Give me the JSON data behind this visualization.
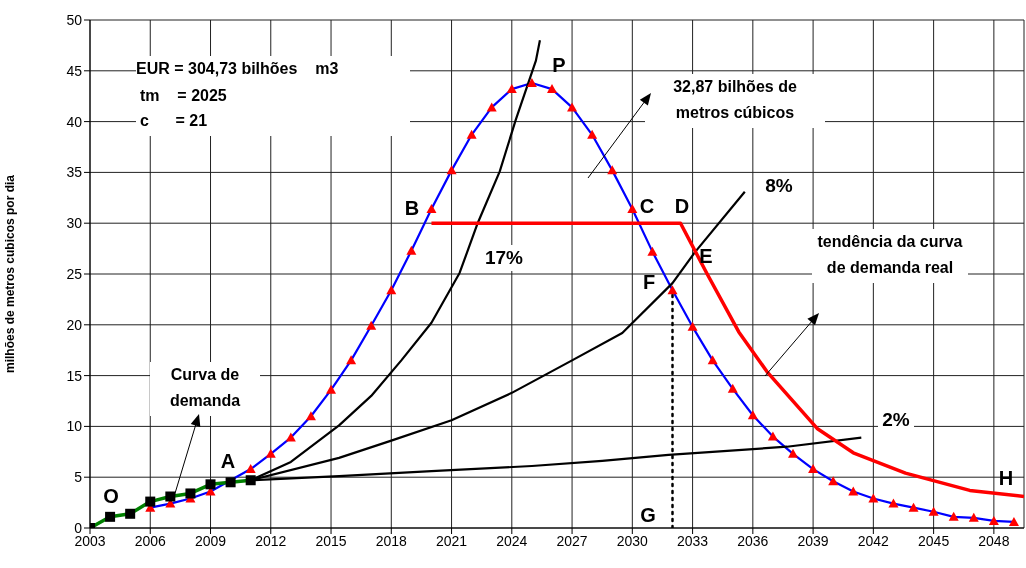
{
  "chart_data": {
    "type": "line",
    "ylabel": "milhões de metros cubicos por dia",
    "xlim": [
      2003,
      2049.5
    ],
    "xticks": [
      2003,
      2006,
      2009,
      2012,
      2015,
      2018,
      2021,
      2024,
      2027,
      2030,
      2033,
      2036,
      2039,
      2042,
      2045,
      2048
    ],
    "ylim": [
      0,
      50
    ],
    "yticks": [
      0,
      5,
      10,
      15,
      20,
      25,
      30,
      35,
      40,
      45,
      50
    ],
    "grid": true,
    "series": [
      {
        "type": "line",
        "color": "#0000ff",
        "marker": "none",
        "x": [
          2006,
          2007,
          2008,
          2009,
          2010,
          2011,
          2012,
          2013,
          2014,
          2015,
          2016,
          2017,
          2018,
          2019,
          2020,
          2021,
          2022,
          2023,
          2024,
          2025,
          2026,
          2027,
          2028,
          2029,
          2030,
          2031,
          2032,
          2033,
          2034,
          2035,
          2036,
          2037,
          2038,
          2039,
          2040,
          2041,
          2042,
          2043,
          2044,
          2045,
          2046,
          2047,
          2048,
          2049
        ],
        "values": [
          2.0,
          2.4,
          2.9,
          3.6,
          null,
          5.8,
          7.3,
          8.9,
          11.0,
          13.6,
          16.5,
          19.9,
          23.4,
          27.3,
          31.4,
          35.2,
          38.7,
          41.4,
          43.2,
          43.8,
          43.2,
          41.4,
          38.7,
          35.2,
          31.4,
          27.2,
          23.4,
          19.8,
          16.5,
          13.7,
          11.1,
          9.0,
          7.3,
          5.8,
          4.6,
          3.6,
          2.9,
          2.4,
          2.0,
          1.6,
          1.1,
          1.0,
          0.7,
          0.6
        ]
      },
      {
        "type": "scatter",
        "color": "#ff0000",
        "marker": "triangle",
        "x": [
          2006,
          2007,
          2008,
          2009,
          2010,
          2011,
          2012,
          2013,
          2014,
          2015,
          2016,
          2017,
          2018,
          2019,
          2020,
          2021,
          2022,
          2023,
          2024,
          2025,
          2026,
          2027,
          2028,
          2029,
          2030,
          2031,
          2032,
          2033,
          2034,
          2035,
          2036,
          2037,
          2038,
          2039,
          2040,
          2041,
          2042,
          2043,
          2044,
          2045,
          2046,
          2047,
          2048,
          2049
        ],
        "values": [
          2.0,
          2.4,
          2.9,
          3.6,
          null,
          5.8,
          7.3,
          8.9,
          11.0,
          13.6,
          16.5,
          19.9,
          23.4,
          27.3,
          31.4,
          35.2,
          38.7,
          41.4,
          43.2,
          43.8,
          43.2,
          41.4,
          38.7,
          35.2,
          31.4,
          27.2,
          23.4,
          19.8,
          16.5,
          13.7,
          11.1,
          9.0,
          7.3,
          5.8,
          4.6,
          3.6,
          2.9,
          2.4,
          2.0,
          1.6,
          1.1,
          1.0,
          0.7,
          0.6
        ]
      },
      {
        "type": "line",
        "color": "#000000",
        "marker": "none",
        "x": [
          2011,
          2013,
          2015.4,
          2017,
          2018.5,
          2020,
          2021.4,
          2022.3,
          2023.4,
          2024.2,
          2025.2,
          2025.4
        ],
        "values": [
          4.7,
          6.5,
          10.1,
          13.0,
          16.5,
          20.2,
          25.1,
          30.0,
          35.1,
          40.2,
          46.0,
          48.0
        ]
      },
      {
        "type": "line",
        "color": "#000000",
        "marker": "none",
        "x": [
          2011,
          2015.4,
          2018,
          2021,
          2024,
          2027,
          2029.5,
          2032,
          2033.1,
          2035.6
        ],
        "values": [
          4.7,
          6.9,
          8.6,
          10.6,
          13.3,
          16.5,
          19.2,
          24.1,
          27.1,
          33.1
        ]
      },
      {
        "type": "line",
        "color": "#000000",
        "marker": "none",
        "x": [
          2011,
          2015.4,
          2020,
          2025,
          2028.5,
          2031.8,
          2037.7,
          2041.4
        ],
        "values": [
          4.7,
          5.1,
          5.6,
          6.1,
          6.6,
          7.2,
          8.0,
          8.9
        ]
      },
      {
        "type": "line",
        "color": "#ff0000",
        "marker": "none",
        "x": [
          2020,
          2032.4,
          2033.7,
          2035.3,
          2036.7,
          2039.2,
          2041,
          2043.6,
          2046.8,
          2049.5
        ],
        "values": [
          30,
          30,
          25.1,
          19.3,
          15.4,
          9.8,
          7.4,
          5.4,
          3.7,
          3.1
        ]
      },
      {
        "type": "line",
        "color": "#000000",
        "marker": "none",
        "line_style": "dotted",
        "x": [
          2032,
          2032
        ],
        "values": [
          0,
          23.4
        ]
      },
      {
        "type": "line",
        "color": "#008000",
        "marker": "none",
        "x": [
          2003,
          2004,
          2005,
          2006,
          2007,
          2008,
          2009,
          2010,
          2011
        ],
        "values": [
          0,
          1.1,
          1.4,
          2.6,
          3.1,
          3.4,
          4.3,
          4.5,
          4.7
        ]
      },
      {
        "type": "scatter",
        "color": "#000000",
        "marker": "square",
        "x": [
          2003,
          2004,
          2005,
          2006,
          2007,
          2008,
          2009,
          2010,
          2011
        ],
        "values": [
          0,
          1.1,
          1.4,
          2.6,
          3.1,
          3.4,
          4.3,
          4.5,
          4.7
        ]
      }
    ],
    "annotations": [
      "EUR = 304,73 bilhões    m3",
      "tm    = 2025",
      "c      = 21",
      {
        "text": "Curva de demanda",
        "x": 2007.2,
        "y": 3.2
      },
      "32,87 bilhões de metros cúbicos",
      "tendência da curva de demanda real",
      "O",
      "A",
      "B",
      "C",
      "D",
      "E",
      "F",
      "G",
      "H",
      "P",
      "17%",
      "8%",
      "2%"
    ]
  }
}
